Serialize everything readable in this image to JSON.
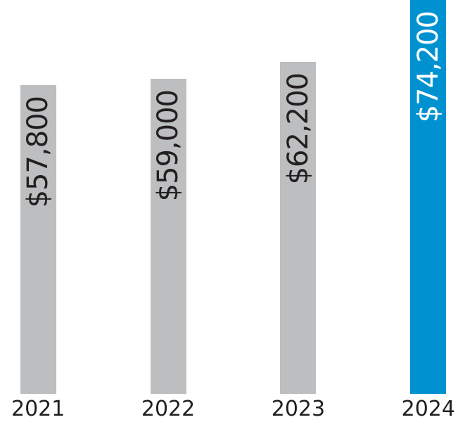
{
  "chart_data": {
    "type": "bar",
    "categories": [
      "2021",
      "2022",
      "2023",
      "2024"
    ],
    "values": [
      57800,
      59000,
      62200,
      74200
    ],
    "value_labels": [
      "$57,800",
      "$59,000",
      "$62,200",
      "$74,200"
    ],
    "title": "",
    "xlabel": "",
    "ylabel": "",
    "ylim": [
      0,
      74200
    ],
    "grid": false,
    "legend": false,
    "orientation": "vertical",
    "value_label_style": "rotated-90-inside-top",
    "highlight_index": 3,
    "colors": {
      "bar_default": "#bcbec0",
      "bar_highlight": "#0092d0",
      "value_label_default": "#231f20",
      "value_label_highlight": "#ffffff",
      "axis_label": "#231f20",
      "background": "#ffffff"
    }
  }
}
